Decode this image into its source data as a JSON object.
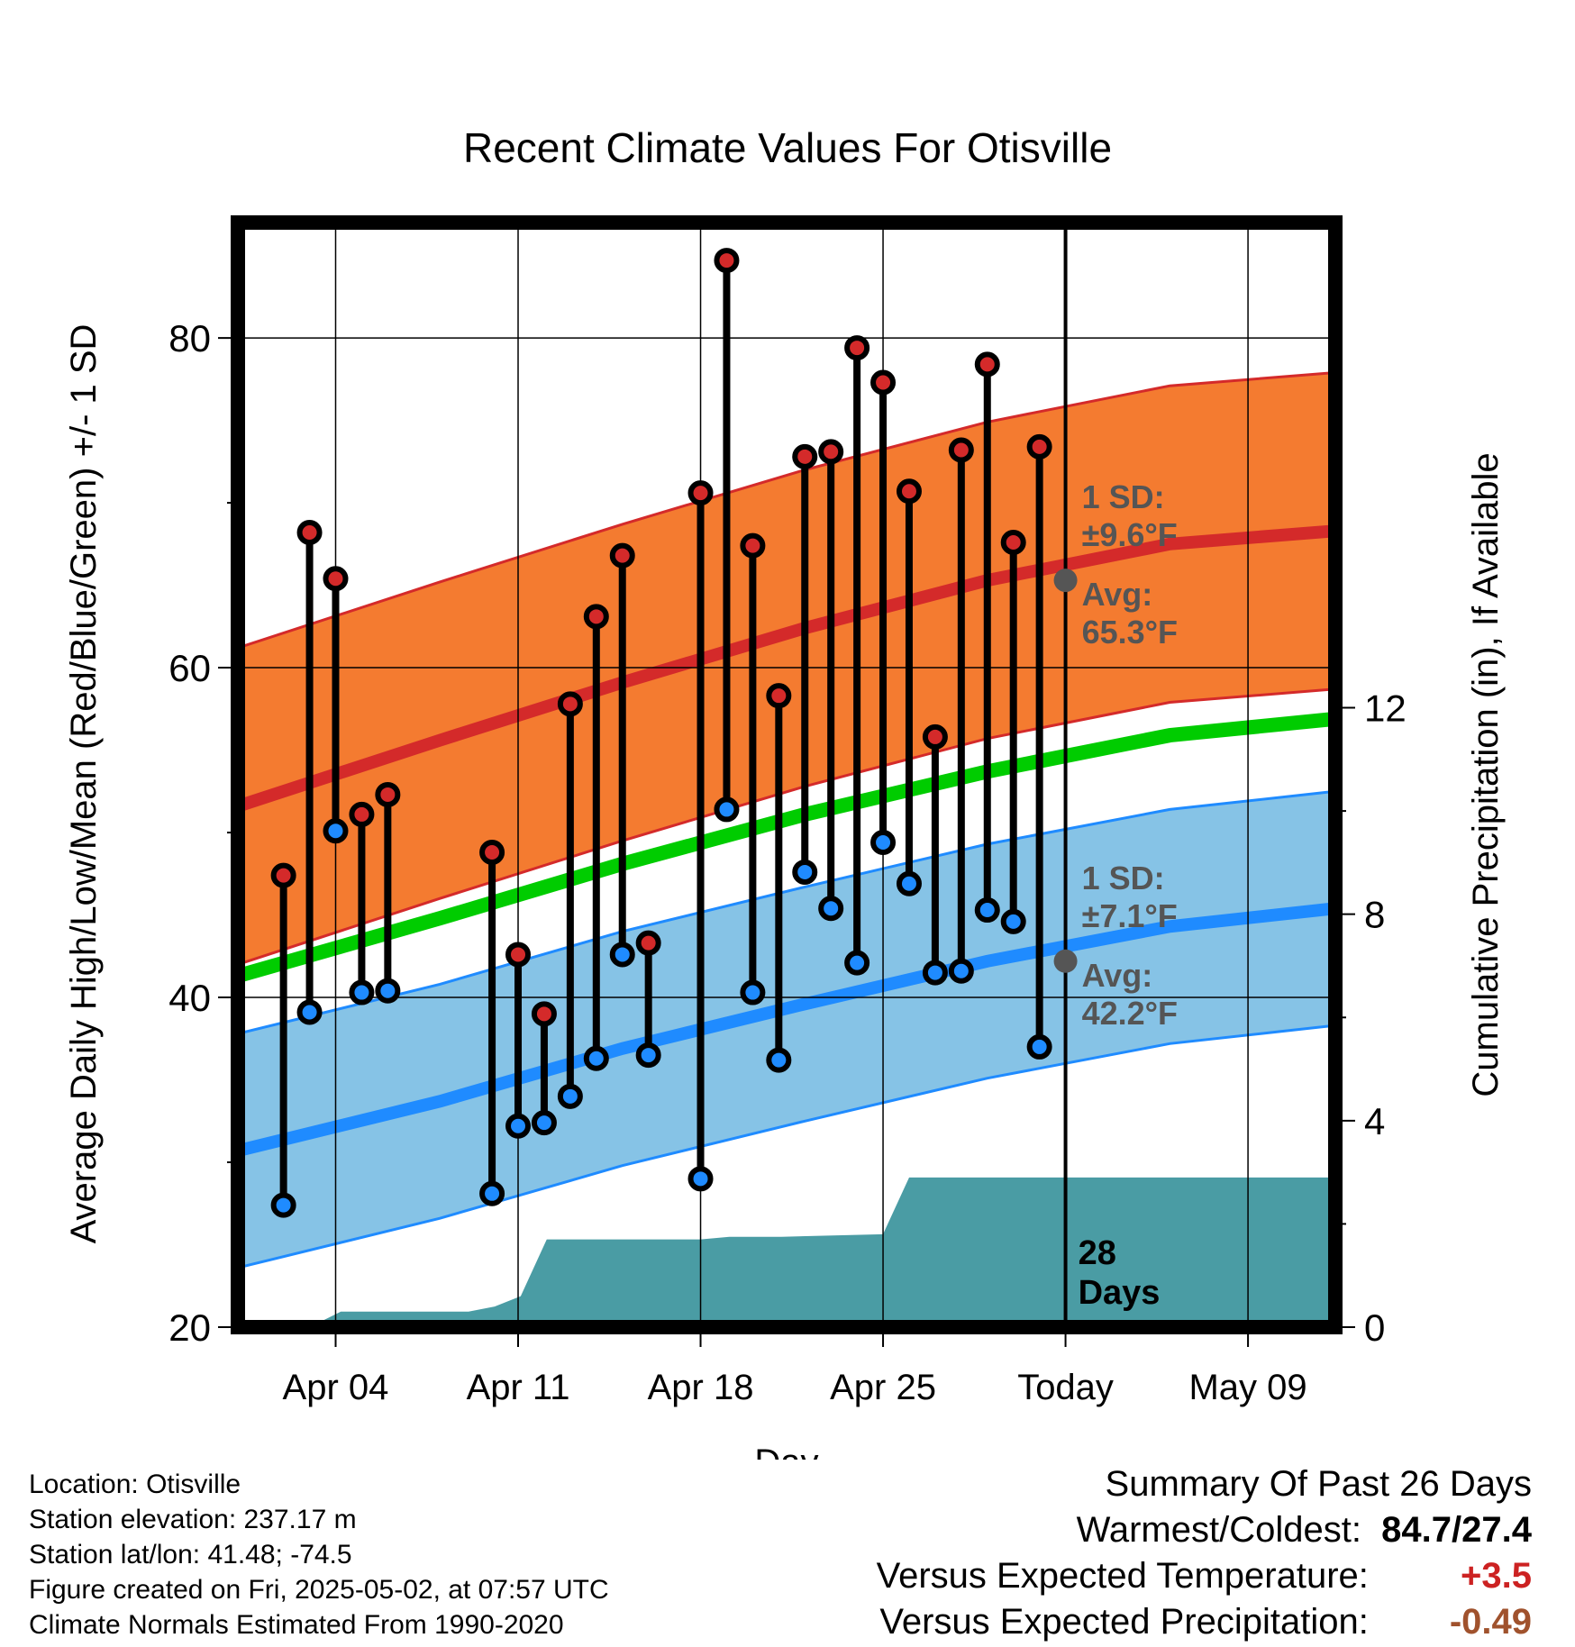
{
  "chart_data": {
    "type": "line",
    "title": "Recent Climate Values For Otisville",
    "xlabel": "Day",
    "ylabel_left": "Average Daily High/Low/Mean (Red/Blue/Green) +/- 1 SD",
    "ylabel_right": "Cumulative Precipitation (in), If Available",
    "y_left_ticks": [
      "20",
      "40",
      "60",
      "80"
    ],
    "y_right_ticks": [
      "0",
      "4",
      "8",
      "12"
    ],
    "y_left_range": [
      20,
      87
    ],
    "y_right_range": [
      0,
      21.4
    ],
    "x_range": [
      -0.75,
      41.35
    ],
    "x_ticks": [
      {
        "label": "Apr 04",
        "day": 3
      },
      {
        "label": "Apr 11",
        "day": 10
      },
      {
        "label": "Apr 18",
        "day": 17
      },
      {
        "label": "Apr 25",
        "day": 24
      },
      {
        "label": "Today",
        "day": 31
      },
      {
        "label": "May 09",
        "day": 38
      }
    ],
    "colors": {
      "high": "#d42a2a",
      "high_band": "#f47b30",
      "low": "#1f8bff",
      "low_band": "#86c3e6",
      "mean": "#00cc00",
      "precip": "#4a9ca4",
      "marker_edge": "#000000",
      "annotation": "#555555",
      "temp_anomaly": "#cc2222",
      "precip_anomaly": "#a0522d"
    },
    "normals": {
      "days": [
        -0.75,
        7,
        14,
        21,
        28,
        35,
        41.35
      ],
      "high_avg": [
        51.6,
        55.6,
        59.1,
        62.4,
        65.3,
        67.5,
        68.3
      ],
      "high_sd": 9.6,
      "low_avg": [
        30.7,
        33.7,
        36.9,
        39.6,
        42.2,
        44.3,
        45.4
      ],
      "low_sd": 7.1,
      "mean_avg": [
        41.3,
        44.8,
        48.1,
        51.1,
        53.7,
        55.9,
        56.9
      ]
    },
    "daily": {
      "days": [
        1,
        2,
        3,
        4,
        5,
        9,
        10,
        11,
        12,
        13,
        14,
        15,
        17,
        18,
        19,
        20,
        21,
        22,
        23,
        24,
        25,
        26,
        27,
        28,
        29,
        30
      ],
      "high": [
        47.4,
        68.2,
        65.4,
        51.1,
        52.3,
        48.8,
        42.6,
        39.0,
        57.8,
        63.1,
        66.8,
        43.3,
        70.6,
        84.7,
        67.4,
        58.3,
        72.8,
        73.1,
        79.4,
        77.3,
        70.7,
        55.8,
        73.2,
        78.4,
        67.6,
        73.4
      ],
      "low": [
        27.4,
        39.1,
        50.1,
        40.3,
        40.4,
        28.1,
        32.2,
        32.4,
        34.0,
        36.3,
        42.6,
        36.5,
        29.0,
        51.4,
        40.3,
        36.2,
        47.6,
        45.4,
        42.1,
        49.4,
        46.9,
        41.5,
        41.6,
        45.3,
        44.6,
        37.0
      ]
    },
    "precip": {
      "days": [
        0,
        2,
        3.2,
        6.1,
        7.1,
        8.1,
        9.1,
        10.1,
        11.1,
        17,
        18.1,
        19.1,
        20.1,
        24,
        25,
        41.35
      ],
      "cumulative": [
        0,
        0,
        0.3,
        0.3,
        0.3,
        0.3,
        0.4,
        0.6,
        1.7,
        1.7,
        1.75,
        1.75,
        1.75,
        1.8,
        2.9,
        2.9
      ]
    },
    "today_day": 31,
    "today_annotation": {
      "days_label": "28",
      "days_word": "Days"
    },
    "high_annotation": {
      "sd_label": "1 SD:",
      "sd_value": "±9.6°F",
      "avg_label": "Avg:",
      "avg_value": "65.3°F",
      "avg": 65.3
    },
    "low_annotation": {
      "sd_label": "1 SD:",
      "sd_value": "±7.1°F",
      "avg_label": "Avg:",
      "avg_value": "42.2°F",
      "avg": 42.2
    },
    "grid": true
  },
  "info": {
    "location": "Location: Otisville",
    "elevation": "Station elevation: 237.17 m",
    "latlon": "Station lat/lon: 41.48; -74.5",
    "created": "Figure created on Fri, 2025-05-02, at 07:57 UTC",
    "normals": "Climate Normals Estimated From 1990-2020"
  },
  "summary": {
    "heading": "Summary Of Past 26 Days",
    "warmest_label": "Warmest/Coldest:",
    "warmest_value": "84.7/27.4",
    "temp_label": "Versus Expected Temperature:",
    "temp_value": "+3.5",
    "precip_label": "Versus Expected Precipitation:",
    "precip_value": "-0.49"
  }
}
